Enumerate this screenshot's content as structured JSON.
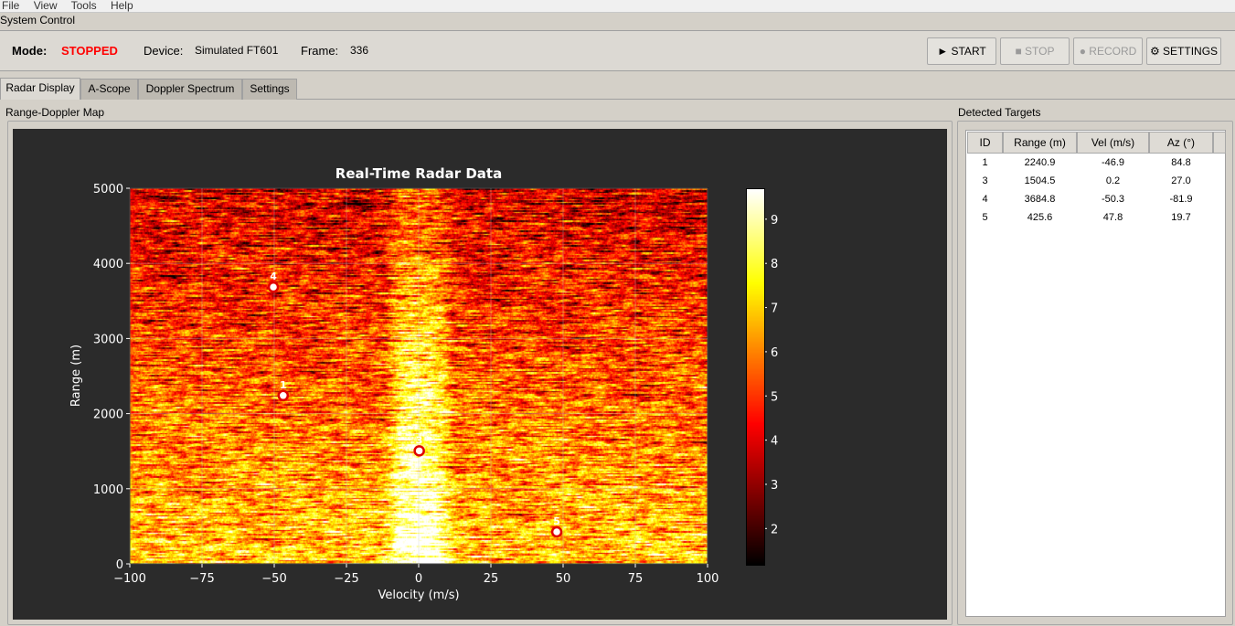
{
  "menu": [
    "File",
    "View",
    "Tools",
    "Help"
  ],
  "system_control": {
    "title": "System Control",
    "mode_label": "Mode:",
    "mode_value": "STOPPED",
    "mode_color": "#ff0000",
    "device_label": "Device:",
    "device_value": "Simulated FT601",
    "frame_label": "Frame:",
    "frame_value": "336",
    "buttons": {
      "start": "► START",
      "stop": "■ STOP",
      "record": "● RECORD",
      "settings": "⚙ SETTINGS"
    }
  },
  "tabs": [
    "Radar Display",
    "A-Scope",
    "Doppler Spectrum",
    "Settings"
  ],
  "left_panel": {
    "title": "Range-Doppler Map"
  },
  "right_panel": {
    "title": "Detected Targets",
    "columns": [
      "ID",
      "Range (m)",
      "Vel (m/s)",
      "Az (°)"
    ],
    "rows": [
      [
        "1",
        "2240.9",
        "-46.9",
        "84.8"
      ],
      [
        "3",
        "1504.5",
        "0.2",
        "27.0"
      ],
      [
        "4",
        "3684.8",
        "-50.3",
        "-81.9"
      ],
      [
        "5",
        "425.6",
        "47.8",
        "19.7"
      ]
    ]
  },
  "chart_data": {
    "type": "heatmap",
    "title": "Real-Time Radar Data",
    "xlabel": "Velocity (m/s)",
    "ylabel": "Range (m)",
    "xlim": [
      -100,
      100
    ],
    "ylim": [
      5000,
      0
    ],
    "xticks": [
      "−100",
      "−75",
      "−50",
      "−25",
      "0",
      "25",
      "50",
      "75",
      "100"
    ],
    "yticks": [
      "0",
      "1000",
      "2000",
      "3000",
      "4000",
      "5000"
    ],
    "colormap": "hot",
    "colorbar": {
      "range": [
        1.2,
        9.7
      ],
      "ticks": [
        "2",
        "3",
        "4",
        "5",
        "6",
        "7",
        "8",
        "9"
      ]
    },
    "grid": true,
    "targets": [
      {
        "id": "1",
        "velocity": -46.9,
        "range": 2240.9
      },
      {
        "id": "3",
        "velocity": 0.2,
        "range": 1504.5
      },
      {
        "id": "4",
        "velocity": -50.3,
        "range": 3684.8
      },
      {
        "id": "5",
        "velocity": 47.8,
        "range": 425.6
      }
    ]
  }
}
